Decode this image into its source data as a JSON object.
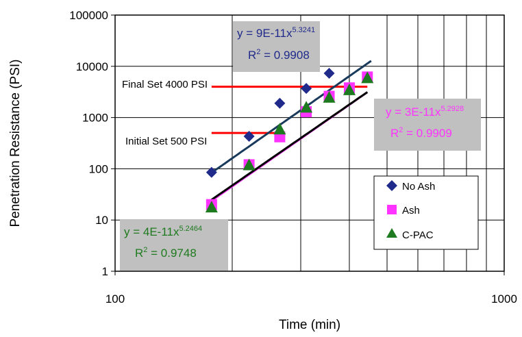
{
  "chart_data": {
    "type": "scatter",
    "xscale": "log",
    "yscale": "log",
    "xlim": [
      100,
      1000
    ],
    "ylim": [
      1,
      100000
    ],
    "xlabel": "Time (min)",
    "ylabel": "Penetration Resistance (PSI)",
    "x_ticks": [
      "100",
      "1000"
    ],
    "y_ticks": [
      "1",
      "10",
      "100",
      "1000",
      "10000",
      "100000"
    ],
    "grid": true,
    "legend_position": "bottom-right",
    "series": [
      {
        "name": "No Ash",
        "marker": "diamond",
        "color": "#1f2a8a",
        "x": [
          177,
          221,
          265,
          310,
          355
        ],
        "y": [
          85,
          430,
          1900,
          3700,
          7300
        ]
      },
      {
        "name": "Ash",
        "marker": "square",
        "color": "#ff33ff",
        "x": [
          177,
          221,
          265,
          310,
          355,
          400,
          445
        ],
        "y": [
          20,
          120,
          420,
          1300,
          2600,
          3800,
          6200
        ]
      },
      {
        "name": "C-PAC",
        "marker": "triangle",
        "color": "#1e7a1e",
        "x": [
          177,
          221,
          265,
          310,
          355,
          400,
          445
        ],
        "y": [
          18,
          120,
          600,
          1600,
          2500,
          3500,
          6000
        ]
      }
    ],
    "fits": [
      {
        "series": "No Ash",
        "a": 9e-11,
        "b": 5.3241,
        "x_range": [
          177,
          455
        ],
        "color": "#1a3a5c"
      },
      {
        "series": "Ash",
        "a": 3e-11,
        "b": 5.2928,
        "x_range": [
          177,
          445
        ],
        "color": "#ff33ff"
      },
      {
        "series": "C-PAC",
        "a": 4e-11,
        "b": 5.2464,
        "x_range": [
          177,
          445
        ],
        "color": "#000000"
      }
    ],
    "reference_lines": [
      {
        "label": "Final Set 4000 PSI",
        "y": 4000,
        "x_range": [
          177,
          445
        ],
        "color": "#ff0000"
      },
      {
        "label": "Initial Set 500 PSI",
        "y": 500,
        "x_range": [
          177,
          265
        ],
        "color": "#ff0000"
      }
    ],
    "equations": [
      {
        "series": "No Ash",
        "eq_prefix": "y = 9E-11x",
        "exponent": "5.3241",
        "r2_prefix": "R",
        "r2_sup": "2",
        "r2_value": " = 0.9908",
        "color": "#1f2a8a"
      },
      {
        "series": "Ash",
        "eq_prefix": "y = 3E-11x",
        "exponent": "5.2928",
        "r2_prefix": "R",
        "r2_sup": "2",
        "r2_value": " = 0.9909",
        "color": "#ff33ff"
      },
      {
        "series": "C-PAC",
        "eq_prefix": "y = 4E-11x",
        "exponent": "5.2464",
        "r2_prefix": "R",
        "r2_sup": "2",
        "r2_value": " = 0.9748",
        "color": "#1e7a1e"
      }
    ]
  }
}
